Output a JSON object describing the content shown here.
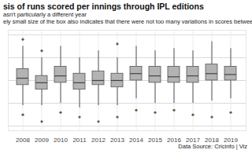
{
  "chart_data": {
    "type": "box",
    "title": "sis of runs scored per innings through IPL editions",
    "subtitle": [
      "asn't particularly a different year",
      "ely small size of the box also indicates that there were not too many variations in scores between matches"
    ],
    "caption": "Data Source: Cricinfo | Viz",
    "categories": [
      "2008",
      "2009",
      "2010",
      "2011",
      "2012",
      "2013",
      "2014",
      "2015",
      "2016",
      "2017",
      "2018",
      "2019"
    ],
    "q1": [
      140,
      130,
      145,
      130,
      140,
      135,
      150,
      145,
      145,
      145,
      150,
      150
    ],
    "median": [
      155,
      145,
      160,
      145,
      150,
      150,
      165,
      160,
      158,
      160,
      165,
      163
    ],
    "q3": [
      175,
      160,
      180,
      165,
      170,
      165,
      180,
      180,
      180,
      180,
      185,
      180
    ],
    "whisker_low": [
      95,
      95,
      100,
      90,
      95,
      95,
      110,
      100,
      100,
      100,
      105,
      110
    ],
    "whisker_high": [
      225,
      200,
      225,
      200,
      215,
      200,
      225,
      215,
      220,
      215,
      235,
      220
    ],
    "outliers": [
      [
        240,
        75
      ],
      [
        60,
        215
      ],
      [
        80
      ],
      [
        70
      ],
      [
        60
      ],
      [
        70,
        230
      ],
      [
        85
      ],
      [
        80
      ],
      [
        85
      ],
      [
        75
      ],
      [
        70
      ],
      [
        80
      ]
    ],
    "color": "#b3b3b3",
    "ylim": [
      40,
      260
    ],
    "yticks": [
      50,
      100,
      150,
      200,
      250
    ],
    "grid": true,
    "tick_labels": "x"
  }
}
